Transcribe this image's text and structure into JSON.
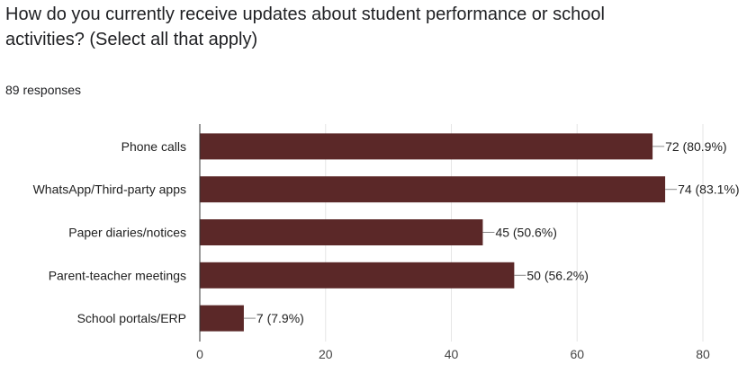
{
  "header": {
    "question": "How do you currently receive updates about student performance or school activities? (Select all that apply)",
    "responses": "89 responses"
  },
  "colors": {
    "bar": "#5b2828",
    "grid": "#e6e6e6",
    "axis": "#333333",
    "leader": "#888888"
  },
  "chart_data": {
    "type": "bar",
    "orientation": "horizontal",
    "categories": [
      "Phone calls",
      "WhatsApp/Third-party apps",
      "Paper diaries/notices",
      "Parent-teacher meetings",
      "School portals/ERP"
    ],
    "values": [
      72,
      74,
      45,
      50,
      7
    ],
    "data_labels": [
      "72 (80.9%)",
      "74 (83.1%)",
      "45 (50.6%)",
      "50 (56.2%)",
      "7 (7.9%)"
    ],
    "xlim": [
      0,
      80
    ],
    "xticks": [
      0,
      20,
      40,
      60,
      80
    ],
    "grid": true
  }
}
